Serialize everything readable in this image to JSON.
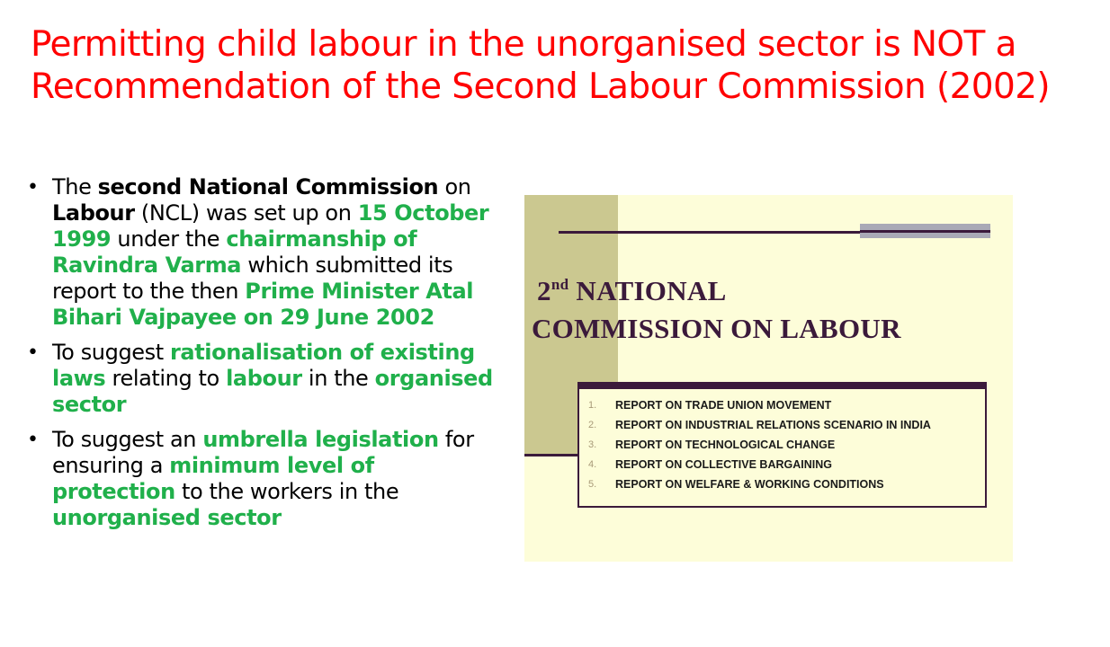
{
  "title": "Permitting child labour in the unorganised sector is NOT a Recommendation of the Second Labour Commission (2002)",
  "bullet_symbol": "•",
  "bullets": [
    {
      "segments": [
        {
          "text": "The ",
          "style": "normal"
        },
        {
          "text": "second National Commission",
          "style": "bold"
        },
        {
          "text": " on ",
          "style": "normal"
        },
        {
          "text": "Labour",
          "style": "bold"
        },
        {
          "text": " (NCL) was set up on ",
          "style": "normal"
        },
        {
          "text": "15 October 1999",
          "style": "green"
        },
        {
          "text": " under the ",
          "style": "normal"
        },
        {
          "text": "chairmanship of Ravindra Varma",
          "style": "green"
        },
        {
          "text": " which submitted its report to the then ",
          "style": "normal"
        },
        {
          "text": "Prime Minister Atal Bihari Vajpayee on 29 June 2002",
          "style": "green"
        }
      ]
    },
    {
      "segments": [
        {
          "text": "To suggest ",
          "style": "normal"
        },
        {
          "text": "rationalisation of existing laws",
          "style": "green"
        },
        {
          "text": " relating to ",
          "style": "normal"
        },
        {
          "text": "labour",
          "style": "green"
        },
        {
          "text": " in the ",
          "style": "normal"
        },
        {
          "text": "organised sector",
          "style": "green"
        }
      ]
    },
    {
      "segments": [
        {
          "text": "To suggest an ",
          "style": "normal"
        },
        {
          "text": "umbrella legislation",
          "style": "green"
        },
        {
          "text": " for ensuring a ",
          "style": "normal"
        },
        {
          "text": "minimum level of protection",
          "style": "green"
        },
        {
          "text": " to the workers in the ",
          "style": "normal"
        },
        {
          "text": "unorganised sector",
          "style": "green"
        }
      ]
    }
  ],
  "figure": {
    "title_ordinal": "2",
    "title_ordinal_suffix": "nd",
    "title_line1": "NATIONAL",
    "title_line2": "COMMISSION ON LABOUR",
    "reports": [
      {
        "num": "1.",
        "text": "REPORT ON TRADE UNION MOVEMENT"
      },
      {
        "num": "2.",
        "text": "REPORT ON INDUSTRIAL RELATIONS SCENARIO IN INDIA"
      },
      {
        "num": "3.",
        "text": "REPORT ON TECHNOLOGICAL CHANGE"
      },
      {
        "num": "4.",
        "text": "REPORT ON COLLECTIVE BARGAINING"
      },
      {
        "num": "5.",
        "text": "REPORT ON WELFARE & WORKING CONDITIONS"
      }
    ]
  },
  "colors": {
    "title": "#ff0000",
    "highlight_green": "#20b04b",
    "figure_background": "#fdfdd9",
    "figure_band": "#cbc890",
    "figure_ink": "#3b1a3b"
  }
}
